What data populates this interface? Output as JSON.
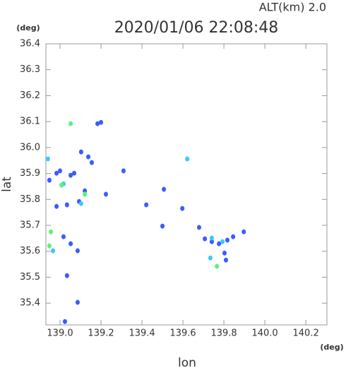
{
  "chart_data": {
    "type": "scatter",
    "title": "2020/01/06 22:08:48",
    "subtitle": "ALT(km) 2.0",
    "y_unit": "(deg)",
    "x_unit": "(deg)",
    "xlabel": "lon",
    "ylabel": "lat",
    "xlim": [
      138.931,
      140.303
    ],
    "ylim": [
      35.316,
      36.4
    ],
    "xticks": [
      {
        "value": 139.0,
        "label": "139.0"
      },
      {
        "value": 139.2,
        "label": "139.2"
      },
      {
        "value": 139.4,
        "label": "139.4"
      },
      {
        "value": 139.6,
        "label": "139.6"
      },
      {
        "value": 139.8,
        "label": "139.8"
      },
      {
        "value": 140.0,
        "label": "140.0"
      },
      {
        "value": 140.2,
        "label": "140.2"
      }
    ],
    "yticks": [
      36.4,
      36.3,
      36.2,
      36.1,
      {
        "value": 36.0,
        "label": "36.0"
      },
      35.9,
      35.8,
      35.7,
      35.6,
      35.5,
      35.4
    ],
    "series": [
      {
        "color": "#3a5cff",
        "x": [
          139.183,
          139.2,
          139.103,
          139.138,
          139.069,
          139.0,
          138.948,
          139.052,
          139.121,
          139.093,
          139.034,
          138.983,
          139.224,
          139.31,
          139.421,
          139.507,
          139.597,
          139.5,
          139.679,
          139.707,
          139.741,
          139.776,
          139.817,
          139.845,
          139.897,
          139.803,
          139.81,
          139.052,
          139.086,
          139.017,
          139.086,
          139.024,
          139.034,
          139.155,
          138.983
        ],
        "y": [
          36.092,
          36.097,
          35.983,
          35.964,
          35.901,
          35.91,
          35.874,
          35.893,
          35.833,
          35.792,
          35.779,
          35.773,
          35.82,
          35.91,
          35.779,
          35.839,
          35.765,
          35.697,
          35.692,
          35.648,
          35.637,
          35.629,
          35.643,
          35.656,
          35.675,
          35.593,
          35.566,
          35.629,
          35.602,
          35.656,
          35.403,
          35.329,
          35.506,
          35.942,
          35.901
        ]
      },
      {
        "color": "#3cc8ff",
        "x": [
          138.941,
          139.621,
          139.741,
          139.793,
          138.966,
          139.017,
          139.103,
          139.734
        ],
        "y": [
          35.956,
          35.956,
          35.651,
          35.637,
          35.602,
          35.86,
          35.784,
          35.574
        ]
      },
      {
        "color": "#5cf27a",
        "x": [
          139.052,
          139.007,
          138.955,
          138.948,
          139.766,
          139.121
        ],
        "y": [
          36.092,
          35.855,
          35.675,
          35.621,
          35.542,
          35.82
        ]
      }
    ]
  }
}
